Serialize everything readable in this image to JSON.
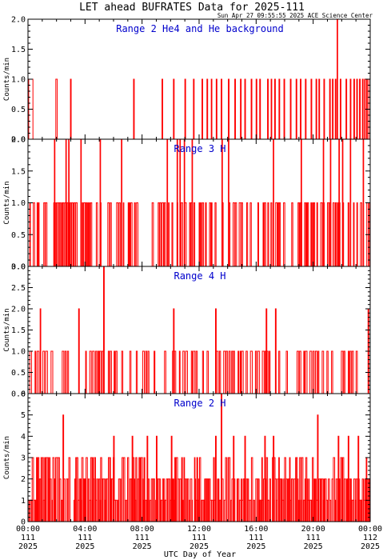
{
  "figure": {
    "title": "LET ahead BUFRATES Data for 2025-111",
    "timestamp": "Sun Apr 27 09:55:55 2025 ACE Science Center",
    "xlabel": "UTC Day of Year"
  },
  "colors": {
    "series": "#ff0000",
    "panel_label": "#0000cc",
    "axes": "#000000",
    "background": "#ffffff"
  },
  "x_axis": {
    "range": [
      "00:00",
      "24:00"
    ],
    "ticks": [
      {
        "time": "00:00",
        "doy": "111",
        "year": "2025"
      },
      {
        "time": "04:00",
        "doy": "111",
        "year": "2025"
      },
      {
        "time": "08:00",
        "doy": "111",
        "year": "2025"
      },
      {
        "time": "12:00",
        "doy": "111",
        "year": "2025"
      },
      {
        "time": "16:00",
        "doy": "111",
        "year": "2025"
      },
      {
        "time": "20:00",
        "doy": "111",
        "year": "2025"
      },
      {
        "time": "00:00",
        "doy": "112",
        "year": "2025"
      }
    ]
  },
  "chart_data": [
    {
      "type": "line",
      "label": "Range 2 He4 and He background",
      "ylabel": "Counts/min",
      "ylim": [
        0,
        2.0
      ],
      "yticks": [
        "0.0",
        "0.5",
        "1.0",
        "1.5",
        "2.0"
      ],
      "x_unit": "hour of day 111 (UTC)",
      "description": "Count rate per minute is mostly 0 with brief 1-count spikes; a single 2-count spike near 21:40.",
      "spikes": [
        {
          "start": 0.05,
          "end": 0.35,
          "value": 1
        },
        {
          "start": 1.95,
          "end": 2.05,
          "value": 1
        },
        {
          "start": 2.98,
          "end": 3.03,
          "value": 1
        },
        {
          "start": 7.4,
          "end": 7.45,
          "value": 1
        },
        {
          "start": 9.4,
          "end": 9.45,
          "value": 1
        },
        {
          "start": 10.2,
          "end": 10.25,
          "value": 1
        },
        {
          "start": 11.0,
          "end": 11.05,
          "value": 1
        },
        {
          "start": 11.6,
          "end": 11.65,
          "value": 1
        },
        {
          "start": 12.2,
          "end": 12.25,
          "value": 1
        },
        {
          "start": 12.55,
          "end": 12.6,
          "value": 1
        },
        {
          "start": 12.85,
          "end": 12.9,
          "value": 1
        },
        {
          "start": 13.2,
          "end": 13.25,
          "value": 1
        },
        {
          "start": 13.55,
          "end": 13.6,
          "value": 1
        },
        {
          "start": 14.05,
          "end": 14.1,
          "value": 1
        },
        {
          "start": 14.5,
          "end": 14.55,
          "value": 1
        },
        {
          "start": 14.9,
          "end": 14.95,
          "value": 1
        },
        {
          "start": 15.2,
          "end": 15.25,
          "value": 1
        },
        {
          "start": 15.65,
          "end": 15.7,
          "value": 1
        },
        {
          "start": 16.0,
          "end": 16.05,
          "value": 1
        },
        {
          "start": 16.25,
          "end": 16.3,
          "value": 1
        },
        {
          "start": 16.8,
          "end": 16.85,
          "value": 1
        },
        {
          "start": 17.05,
          "end": 17.1,
          "value": 1
        },
        {
          "start": 17.3,
          "end": 17.35,
          "value": 1
        },
        {
          "start": 17.6,
          "end": 17.65,
          "value": 1
        },
        {
          "start": 17.95,
          "end": 18.0,
          "value": 1
        },
        {
          "start": 18.4,
          "end": 18.45,
          "value": 1
        },
        {
          "start": 18.8,
          "end": 18.85,
          "value": 1
        },
        {
          "start": 19.1,
          "end": 19.15,
          "value": 1
        },
        {
          "start": 19.45,
          "end": 19.5,
          "value": 1
        },
        {
          "start": 19.85,
          "end": 19.9,
          "value": 1
        },
        {
          "start": 20.2,
          "end": 20.25,
          "value": 1
        },
        {
          "start": 20.4,
          "end": 20.45,
          "value": 1
        },
        {
          "start": 20.75,
          "end": 20.8,
          "value": 1
        },
        {
          "start": 21.15,
          "end": 21.2,
          "value": 1
        },
        {
          "start": 21.35,
          "end": 21.4,
          "value": 1
        },
        {
          "start": 21.55,
          "end": 21.6,
          "value": 1
        },
        {
          "start": 21.68,
          "end": 21.72,
          "value": 2
        },
        {
          "start": 21.9,
          "end": 21.95,
          "value": 1
        },
        {
          "start": 22.3,
          "end": 22.35,
          "value": 1
        },
        {
          "start": 22.6,
          "end": 22.65,
          "value": 1
        },
        {
          "start": 22.85,
          "end": 22.9,
          "value": 1
        },
        {
          "start": 23.05,
          "end": 23.1,
          "value": 1
        },
        {
          "start": 23.25,
          "end": 23.3,
          "value": 1
        },
        {
          "start": 23.45,
          "end": 23.5,
          "value": 1
        },
        {
          "start": 23.6,
          "end": 23.65,
          "value": 1
        },
        {
          "start": 23.75,
          "end": 23.8,
          "value": 1
        },
        {
          "start": 23.9,
          "end": 24.0,
          "value": 1
        }
      ]
    },
    {
      "type": "line",
      "label": "Range 3 H",
      "ylabel": "Counts/min",
      "ylim": [
        0,
        2.0
      ],
      "yticks": [
        "0.0",
        "0.5",
        "1.0",
        "1.5",
        "2.0"
      ],
      "x_unit": "hour of day 111 (UTC)",
      "description": "Count rate toggles rapidly between 0 and 1 throughout the day with occasional 2-count spikes.",
      "baseline_pattern": "rapid alternation between 0 and 1 counts/min",
      "spikes_value_2_hours": [
        1.85,
        2.65,
        2.85,
        3.7,
        5.05,
        6.55,
        9.75,
        10.45,
        10.65,
        10.95,
        11.5,
        13.6,
        14.05,
        17.2,
        19.15,
        20.7,
        21.2,
        21.8,
        22.05,
        22.6,
        23.5
      ]
    },
    {
      "type": "line",
      "label": "Range 4 H",
      "ylabel": "Counts/min",
      "ylim": [
        0,
        3.0
      ],
      "yticks": [
        "0.0",
        "0.5",
        "1.0",
        "1.5",
        "2.0",
        "2.5",
        "3.0"
      ],
      "x_unit": "hour of day 111 (UTC)",
      "description": "Count rate toggles between 0 and 1 with several 2-count spikes and one 3-count spike near 05:20.",
      "baseline_pattern": "alternation between 0 and 1 counts/min",
      "spikes": [
        {
          "hour": 0.85,
          "value": 2
        },
        {
          "hour": 3.55,
          "value": 2
        },
        {
          "hour": 5.3,
          "value": 3
        },
        {
          "hour": 10.2,
          "value": 2
        },
        {
          "hour": 13.15,
          "value": 2
        },
        {
          "hour": 16.7,
          "value": 2
        },
        {
          "hour": 17.35,
          "value": 2
        },
        {
          "hour": 23.85,
          "value": 2
        }
      ]
    },
    {
      "type": "line",
      "label": "Range 2 H",
      "ylabel": "Counts/min",
      "ylim": [
        0,
        6
      ],
      "yticks": [
        "0",
        "1",
        "2",
        "3",
        "4",
        "5",
        "6"
      ],
      "x_unit": "hour of day 111 (UTC)",
      "description": "Count rate fluctuates mostly between 0 and 3 with frequent spikes to 4 and occasional 5–6.",
      "baseline_pattern": "fluctuation between 0 and 3 counts/min",
      "spikes": [
        {
          "hour": 2.45,
          "value": 5
        },
        {
          "hour": 6.0,
          "value": 4
        },
        {
          "hour": 7.3,
          "value": 4
        },
        {
          "hour": 8.35,
          "value": 4
        },
        {
          "hour": 9.0,
          "value": 4
        },
        {
          "hour": 10.05,
          "value": 4
        },
        {
          "hour": 13.15,
          "value": 4
        },
        {
          "hour": 13.55,
          "value": 6
        },
        {
          "hour": 14.4,
          "value": 4
        },
        {
          "hour": 15.2,
          "value": 4
        },
        {
          "hour": 16.6,
          "value": 4
        },
        {
          "hour": 17.2,
          "value": 4
        },
        {
          "hour": 20.3,
          "value": 5
        },
        {
          "hour": 21.75,
          "value": 4
        },
        {
          "hour": 22.45,
          "value": 4
        },
        {
          "hour": 23.15,
          "value": 4
        }
      ]
    }
  ]
}
